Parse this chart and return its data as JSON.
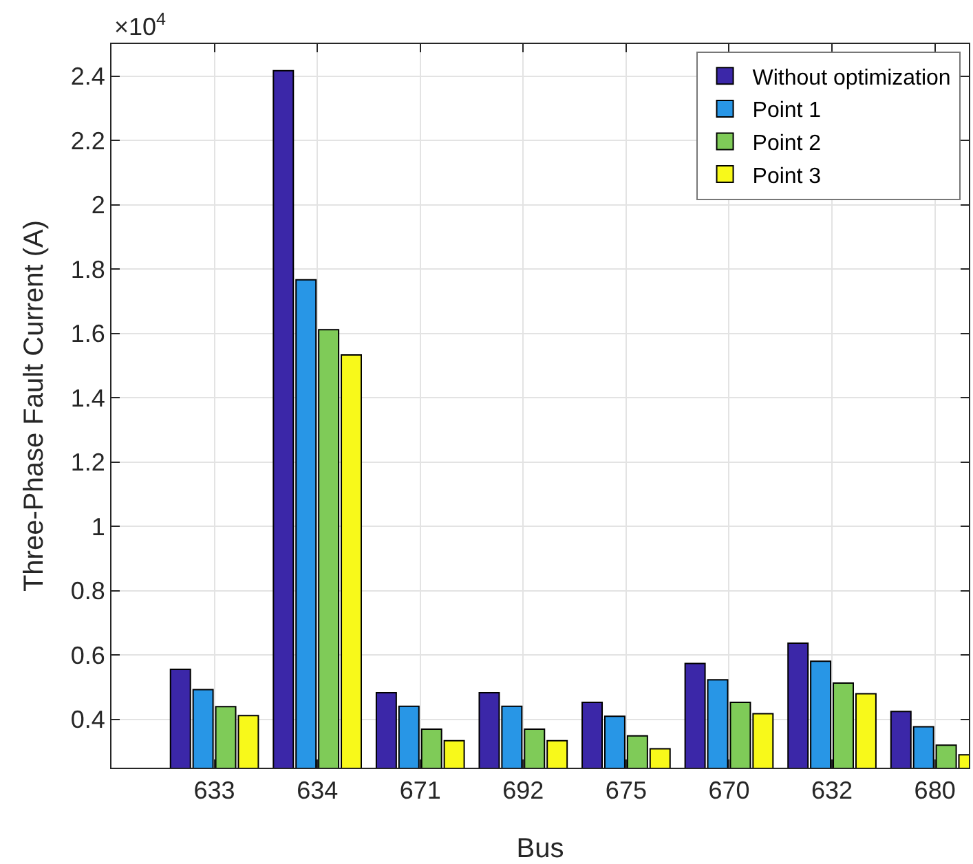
{
  "chart_data": {
    "type": "bar",
    "xlabel": "Bus",
    "ylabel": "Three-Phase Fault Current (A)",
    "annotations": [
      "×10$^{4}$"
    ],
    "categories": [
      "633",
      "634",
      "671",
      "692",
      "675",
      "670",
      "632",
      "680"
    ],
    "series": [
      {
        "name": "Without optimization",
        "color": "#3b27a8",
        "values": [
          0.556,
          2.417,
          0.483,
          0.483,
          0.453,
          0.574,
          0.637,
          0.425
        ]
      },
      {
        "name": "Point 1",
        "color": "#2896e6",
        "values": [
          0.493,
          1.767,
          0.441,
          0.441,
          0.41,
          0.523,
          0.581,
          0.377
        ]
      },
      {
        "name": "Point 2",
        "color": "#7fcb58",
        "values": [
          0.44,
          1.612,
          0.37,
          0.37,
          0.349,
          0.453,
          0.513,
          0.32
        ]
      },
      {
        "name": "Point 3",
        "color": "#f8f91a",
        "values": [
          0.412,
          1.533,
          0.334,
          0.334,
          0.309,
          0.418,
          0.48,
          0.29
        ]
      }
    ],
    "ylim": [
      0.25,
      2.5
    ],
    "yticks": [
      0.4,
      0.6,
      0.8,
      1,
      1.2,
      1.4,
      1.6,
      1.8,
      2,
      2.2,
      2.4
    ],
    "grid": true,
    "legend": "top right"
  }
}
